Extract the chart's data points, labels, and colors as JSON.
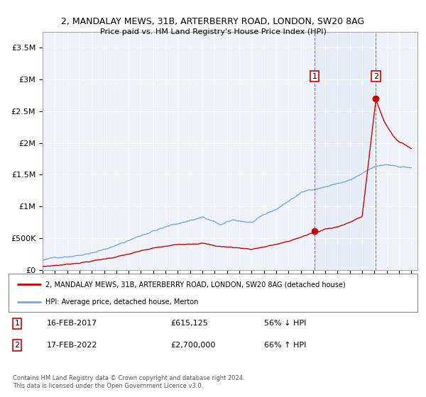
{
  "title1": "2, MANDALAY MEWS, 31B, ARTERBERRY ROAD, LONDON, SW20 8AG",
  "title2": "Price paid vs. HM Land Registry's House Price Index (HPI)",
  "ylim": [
    0,
    3750000
  ],
  "yticks": [
    0,
    500000,
    1000000,
    1500000,
    2000000,
    2500000,
    3000000,
    3500000
  ],
  "ytick_labels": [
    "£0",
    "£500K",
    "£1M",
    "£1.5M",
    "£2M",
    "£2.5M",
    "£3M",
    "£3.5M"
  ],
  "xlim_start": 1995.0,
  "xlim_end": 2025.5,
  "hpi_color": "#7aaad0",
  "price_color": "#cc0000",
  "event1_x": 2017.12,
  "event1_y": 615125,
  "event1_label": "1",
  "event1_date": "16-FEB-2017",
  "event1_price": "£615,125",
  "event1_pct": "56% ↓ HPI",
  "event2_x": 2022.12,
  "event2_y": 2700000,
  "event2_label": "2",
  "event2_date": "17-FEB-2022",
  "event2_price": "£2,700,000",
  "event2_pct": "66% ↑ HPI",
  "legend_line1": "2, MANDALAY MEWS, 31B, ARTERBERRY ROAD, LONDON, SW20 8AG (detached house)",
  "legend_line2": "HPI: Average price, detached house, Merton",
  "footnote": "Contains HM Land Registry data © Crown copyright and database right 2024.\nThis data is licensed under the Open Government Licence v3.0.",
  "background_color": "#ffffff",
  "plot_bg_color": "#edf2fb",
  "grid_color": "#ffffff",
  "shade_color": "#d8e6f8"
}
